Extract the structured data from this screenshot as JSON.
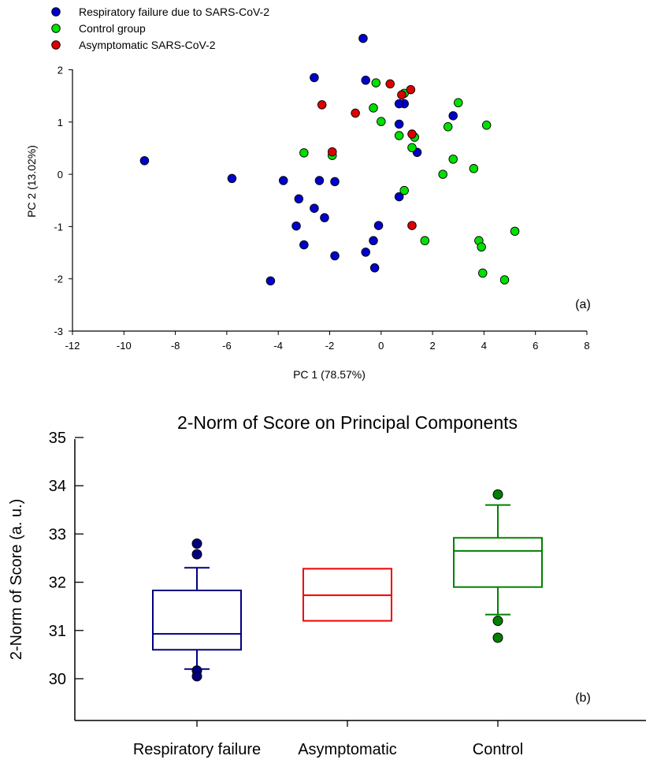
{
  "chart_data": [
    {
      "type": "scatter",
      "panel_label": "(a)",
      "xlabel": "PC 1 (78.57%)",
      "ylabel": "PC 2 (13.02%)",
      "xlim": [
        -12,
        8
      ],
      "ylim": [
        -3,
        2.4
      ],
      "xticks": [
        -12,
        -10,
        -8,
        -6,
        -4,
        -2,
        0,
        2,
        4,
        6,
        8
      ],
      "yticks": [
        -3,
        -2,
        -1,
        0,
        1,
        2
      ],
      "legend": "top-left",
      "series": [
        {
          "name": "Respiratory failure due to SARS-CoV-2",
          "color": "#0000cc",
          "points": [
            [
              -0.7,
              2.6
            ],
            [
              -2.6,
              1.85
            ],
            [
              -0.6,
              1.8
            ],
            [
              0.9,
              1.35
            ],
            [
              0.7,
              1.35
            ],
            [
              2.8,
              1.12
            ],
            [
              0.7,
              0.96
            ],
            [
              1.4,
              0.42
            ],
            [
              -9.2,
              0.26
            ],
            [
              -5.8,
              -0.08
            ],
            [
              -3.8,
              -0.12
            ],
            [
              -2.4,
              -0.12
            ],
            [
              -1.8,
              -0.14
            ],
            [
              -3.2,
              -0.47
            ],
            [
              -2.6,
              -0.65
            ],
            [
              -2.2,
              -0.83
            ],
            [
              0.7,
              -0.43
            ],
            [
              -3.3,
              -0.99
            ],
            [
              -0.1,
              -0.98
            ],
            [
              -0.3,
              -1.27
            ],
            [
              -3.0,
              -1.35
            ],
            [
              -0.6,
              -1.49
            ],
            [
              -1.8,
              -1.56
            ],
            [
              -0.25,
              -1.79
            ],
            [
              -4.3,
              -2.04
            ]
          ]
        },
        {
          "name": "Control group",
          "color": "#00e000",
          "points": [
            [
              -0.2,
              1.75
            ],
            [
              0.9,
              1.55
            ],
            [
              3.0,
              1.37
            ],
            [
              -0.3,
              1.27
            ],
            [
              0.0,
              1.01
            ],
            [
              2.6,
              0.91
            ],
            [
              4.1,
              0.94
            ],
            [
              0.7,
              0.74
            ],
            [
              1.3,
              0.71
            ],
            [
              1.2,
              0.51
            ],
            [
              -3.0,
              0.41
            ],
            [
              -1.9,
              0.36
            ],
            [
              2.8,
              0.29
            ],
            [
              3.6,
              0.11
            ],
            [
              2.4,
              0.0
            ],
            [
              0.9,
              -0.31
            ],
            [
              1.7,
              -1.27
            ],
            [
              3.8,
              -1.27
            ],
            [
              3.9,
              -1.39
            ],
            [
              5.2,
              -1.09
            ],
            [
              3.95,
              -1.89
            ],
            [
              4.8,
              -2.02
            ]
          ]
        },
        {
          "name": "Asymptomatic SARS-CoV-2",
          "color": "#dd0000",
          "points": [
            [
              0.35,
              1.73
            ],
            [
              1.15,
              1.62
            ],
            [
              0.8,
              1.52
            ],
            [
              -2.3,
              1.33
            ],
            [
              -1.0,
              1.17
            ],
            [
              1.2,
              0.77
            ],
            [
              -1.9,
              0.43
            ],
            [
              1.2,
              -0.98
            ]
          ]
        }
      ]
    },
    {
      "type": "box",
      "panel_label": "(b)",
      "title": "2-Norm of Score on Principal Components",
      "ylabel": "2-Norm of Score (a. u.)",
      "xlabel": "",
      "ylim": [
        29.2,
        35
      ],
      "yticks": [
        30,
        31,
        32,
        33,
        34,
        35
      ],
      "categories": [
        "Respiratory failure",
        "Asymptomatic",
        "Control"
      ],
      "boxes": [
        {
          "name": "Respiratory failure",
          "color": "#000080",
          "q1": 30.6,
          "median": 30.93,
          "q3": 31.83,
          "whisker_low": 30.2,
          "whisker_high": 32.3,
          "outliers": [
            32.8,
            32.58,
            30.17,
            30.05
          ]
        },
        {
          "name": "Asymptomatic",
          "color": "#ee0000",
          "q1": 31.2,
          "median": 31.73,
          "q3": 32.28,
          "whisker_low": null,
          "whisker_high": null,
          "outliers": []
        },
        {
          "name": "Control",
          "color": "#008000",
          "q1": 31.9,
          "median": 32.65,
          "q3": 32.92,
          "whisker_low": 31.33,
          "whisker_high": 33.6,
          "outliers": [
            33.82,
            31.2,
            30.85
          ]
        }
      ]
    }
  ]
}
